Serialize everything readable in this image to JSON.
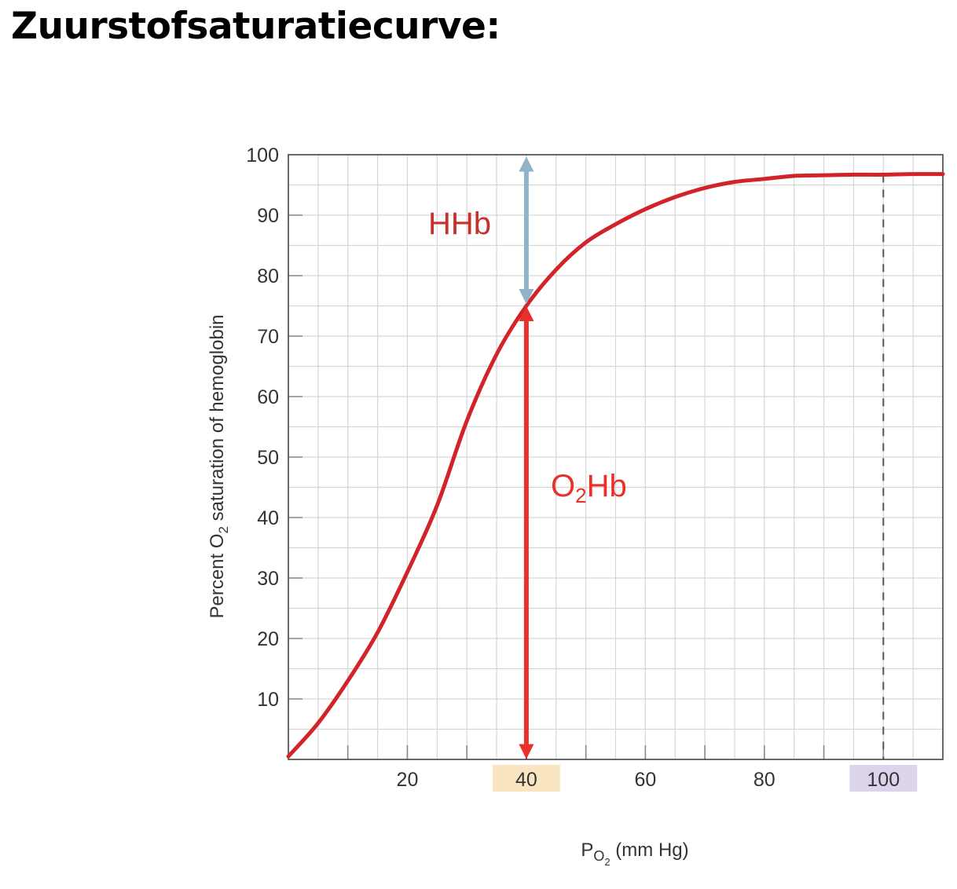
{
  "title": "Zuurstofsaturatiecurve:",
  "chart_data": {
    "type": "line",
    "xlabel": {
      "main": "P",
      "sub": "O",
      "subsub": "2",
      "rest": " (mm Hg)"
    },
    "ylabel": {
      "pre": "Percent O",
      "sub": "2",
      "post": " saturation of hemoglobin"
    },
    "xlim": [
      0,
      110
    ],
    "ylim": [
      0,
      100
    ],
    "grid": true,
    "x_ticks": [
      20,
      40,
      60,
      80,
      100
    ],
    "y_ticks": [
      10,
      20,
      30,
      40,
      50,
      60,
      70,
      80,
      90,
      100
    ],
    "series": [
      {
        "color": "#d2232a",
        "x": [
          0,
          5,
          10,
          15,
          20,
          25,
          30,
          35,
          40,
          45,
          50,
          55,
          60,
          65,
          70,
          75,
          80,
          85,
          90,
          95,
          100,
          105,
          110
        ],
        "y": [
          0.5,
          6,
          13,
          21,
          31,
          42,
          56,
          67,
          75,
          81,
          85.5,
          88.5,
          91,
          93,
          94.5,
          95.5,
          96,
          96.5,
          96.6,
          96.7,
          96.7,
          96.8,
          96.8
        ]
      }
    ],
    "highlighted_ticks": [
      {
        "x": 40,
        "color": "#f9e6c0"
      },
      {
        "x": 100,
        "color": "#dcd4ea"
      }
    ],
    "reference_lines": [
      {
        "x": 40,
        "y_to": 75,
        "style": "dashed"
      },
      {
        "x": 100,
        "y_to": 96.7,
        "style": "dashed"
      }
    ],
    "arrows": [
      {
        "name": "hhb",
        "x": 40,
        "y_from": 75,
        "y_to": 100,
        "color": "#8fb3c7",
        "label": "HHb",
        "label_color": "#c8302c"
      },
      {
        "name": "o2hb",
        "x": 40,
        "y_from": 0,
        "y_to": 75,
        "color": "#e8312a",
        "label_main": "O",
        "label_sub": "2",
        "label_rest": "Hb",
        "label_color": "#e8312a"
      }
    ]
  }
}
